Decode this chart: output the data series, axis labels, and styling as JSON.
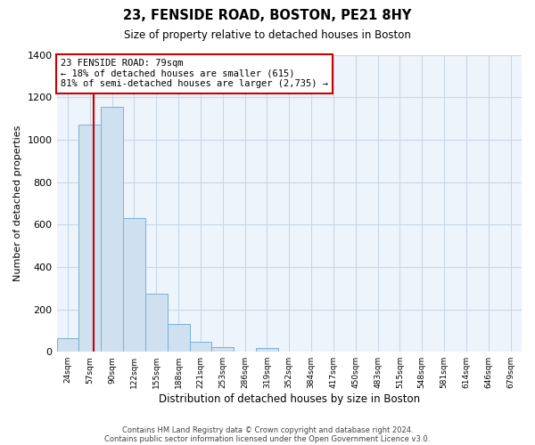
{
  "title": "23, FENSIDE ROAD, BOSTON, PE21 8HY",
  "subtitle": "Size of property relative to detached houses in Boston",
  "xlabel": "Distribution of detached houses by size in Boston",
  "ylabel": "Number of detached properties",
  "bar_labels": [
    "24sqm",
    "57sqm",
    "90sqm",
    "122sqm",
    "155sqm",
    "188sqm",
    "221sqm",
    "253sqm",
    "286sqm",
    "319sqm",
    "352sqm",
    "384sqm",
    "417sqm",
    "450sqm",
    "483sqm",
    "515sqm",
    "548sqm",
    "581sqm",
    "614sqm",
    "646sqm",
    "679sqm"
  ],
  "bar_values": [
    65,
    1070,
    1155,
    630,
    275,
    130,
    48,
    20,
    0,
    18,
    0,
    0,
    0,
    0,
    0,
    0,
    0,
    0,
    0,
    0,
    0
  ],
  "bar_color": "#cfe0f0",
  "bar_edge_color": "#7ab0d4",
  "property_line_color": "#cc0000",
  "ylim": [
    0,
    1400
  ],
  "yticks": [
    0,
    200,
    400,
    600,
    800,
    1000,
    1200,
    1400
  ],
  "annotation_title": "23 FENSIDE ROAD: 79sqm",
  "annotation_line1": "← 18% of detached houses are smaller (615)",
  "annotation_line2": "81% of semi-detached houses are larger (2,735) →",
  "footer1": "Contains HM Land Registry data © Crown copyright and database right 2024.",
  "footer2": "Contains public sector information licensed under the Open Government Licence v3.0.",
  "background_color": "#ffffff",
  "grid_color": "#c8d8e8",
  "plot_bg_color": "#eef4fb"
}
